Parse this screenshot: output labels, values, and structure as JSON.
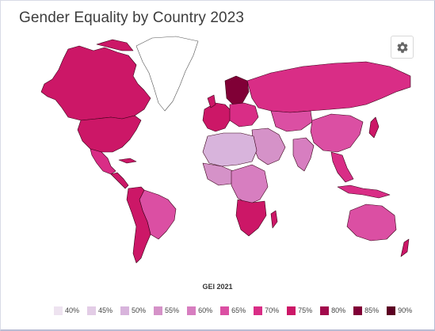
{
  "title": "Gender Equality by Country 2023",
  "settings_icon": "gear-icon",
  "legend": {
    "title": "GEI 2021",
    "items": [
      {
        "label": "40%",
        "color": "#eee3f0"
      },
      {
        "label": "45%",
        "color": "#e3cde6"
      },
      {
        "label": "50%",
        "color": "#d8b4dc"
      },
      {
        "label": "55%",
        "color": "#d592c8"
      },
      {
        "label": "60%",
        "color": "#d77ec0"
      },
      {
        "label": "65%",
        "color": "#db4fa3"
      },
      {
        "label": "70%",
        "color": "#d92d86"
      },
      {
        "label": "75%",
        "color": "#cc1767"
      },
      {
        "label": "80%",
        "color": "#a20a4c"
      },
      {
        "label": "85%",
        "color": "#800036"
      },
      {
        "label": "90%",
        "color": "#5c0022"
      }
    ]
  }
}
